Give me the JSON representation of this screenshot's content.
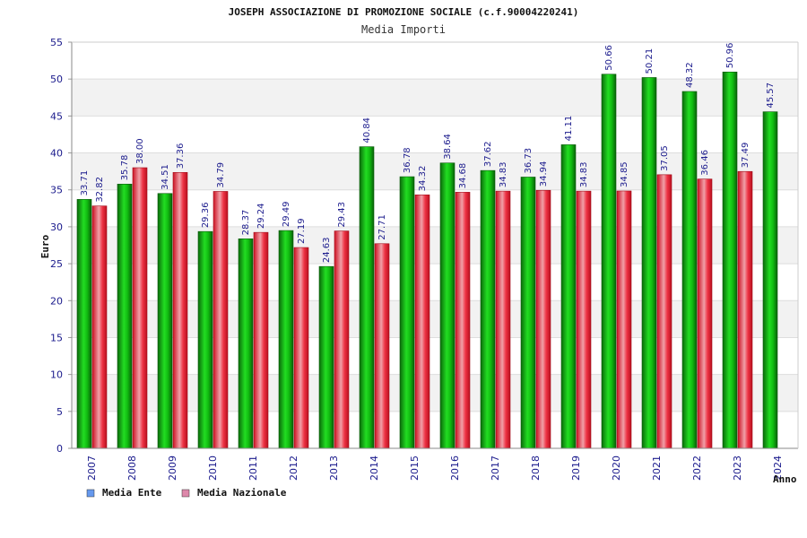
{
  "chart_data": {
    "type": "bar",
    "title": "JOSEPH ASSOCIAZIONE DI PROMOZIONE SOCIALE (c.f.90004220241)",
    "subtitle": "Media Importi",
    "xlabel": "Anno",
    "ylabel": "Euro",
    "ylim": [
      0,
      55
    ],
    "yticks": [
      0,
      5,
      10,
      15,
      20,
      25,
      30,
      35,
      40,
      45,
      50,
      55
    ],
    "grid": true,
    "legend_position": "bottom-left",
    "categories": [
      "2007",
      "2008",
      "2009",
      "2010",
      "2011",
      "2012",
      "2013",
      "2014",
      "2015",
      "2016",
      "2017",
      "2018",
      "2019",
      "2020",
      "2021",
      "2022",
      "2023",
      "2024"
    ],
    "series": [
      {
        "name": "Media Ente",
        "color": "#11bb11",
        "legend_color": "#6699ee",
        "values": [
          33.71,
          35.78,
          34.51,
          29.36,
          28.37,
          29.49,
          24.63,
          40.84,
          36.78,
          38.64,
          37.62,
          36.73,
          41.11,
          50.66,
          50.21,
          48.32,
          50.96,
          45.57
        ],
        "labels": [
          "33.71",
          "35.78",
          "34.51",
          "29.36",
          "28.37",
          "29.49",
          "24.63",
          "40.84",
          "36.78",
          "38.64",
          "37.62",
          "36.73",
          "41.11",
          "50.66",
          "50.21",
          "48.32",
          "50.96",
          "45.57"
        ]
      },
      {
        "name": "Media Nazionale",
        "color": "#ee2233",
        "legend_color": "#dd88aa",
        "values": [
          32.82,
          38.0,
          37.36,
          34.79,
          29.24,
          27.19,
          29.43,
          27.71,
          34.32,
          34.68,
          34.83,
          34.94,
          34.83,
          34.85,
          37.05,
          36.46,
          37.49,
          null
        ],
        "labels": [
          "32.82",
          "38.00",
          "37.36",
          "34.79",
          "29.24",
          "27.19",
          "29.43",
          "27.71",
          "34.32",
          "34.68",
          "34.83",
          "34.94",
          "34.83",
          "34.85",
          "37.05",
          "36.46",
          "37.49",
          null
        ]
      }
    ]
  }
}
